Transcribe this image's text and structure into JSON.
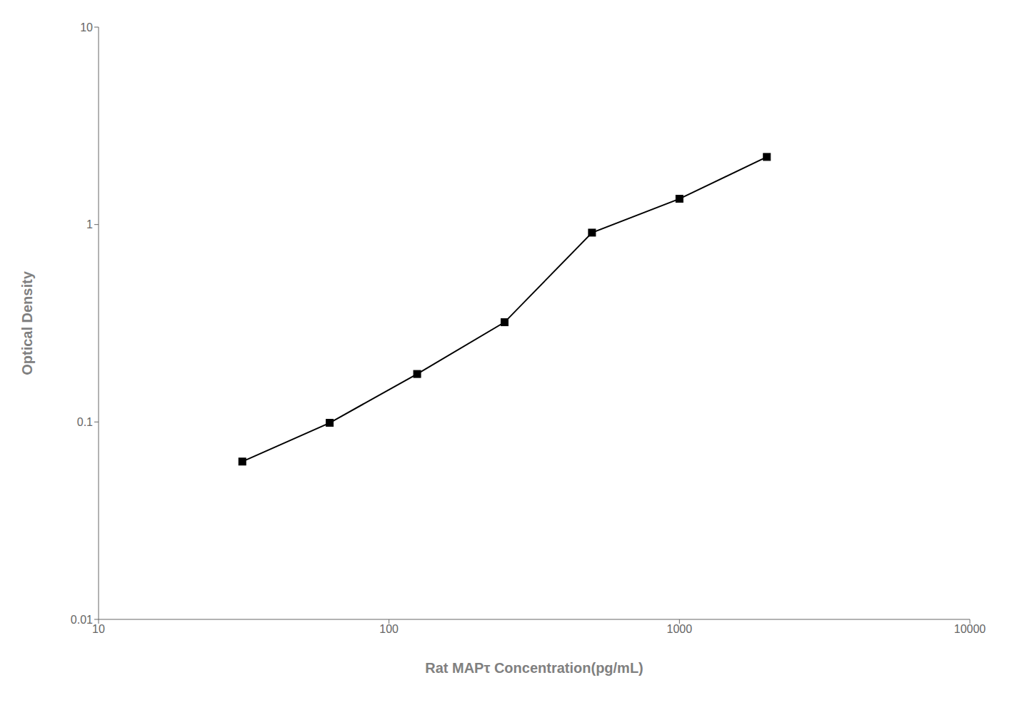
{
  "chart_data": {
    "type": "line",
    "x": [
      31.25,
      62.5,
      125,
      250,
      500,
      1000,
      2000
    ],
    "values": [
      0.063,
      0.099,
      0.175,
      0.32,
      0.91,
      1.35,
      2.2
    ],
    "xlabel": "Rat MAPτ Concentration(pg/mL)",
    "ylabel": "Optical Density",
    "xlim": [
      10,
      10000
    ],
    "ylim": [
      0.01,
      10
    ],
    "xticks": [
      10,
      100,
      1000,
      10000
    ],
    "yticks": [
      0.01,
      0.1,
      1,
      10
    ],
    "log": true,
    "grid": false,
    "color": "#000000",
    "marker": "square"
  }
}
